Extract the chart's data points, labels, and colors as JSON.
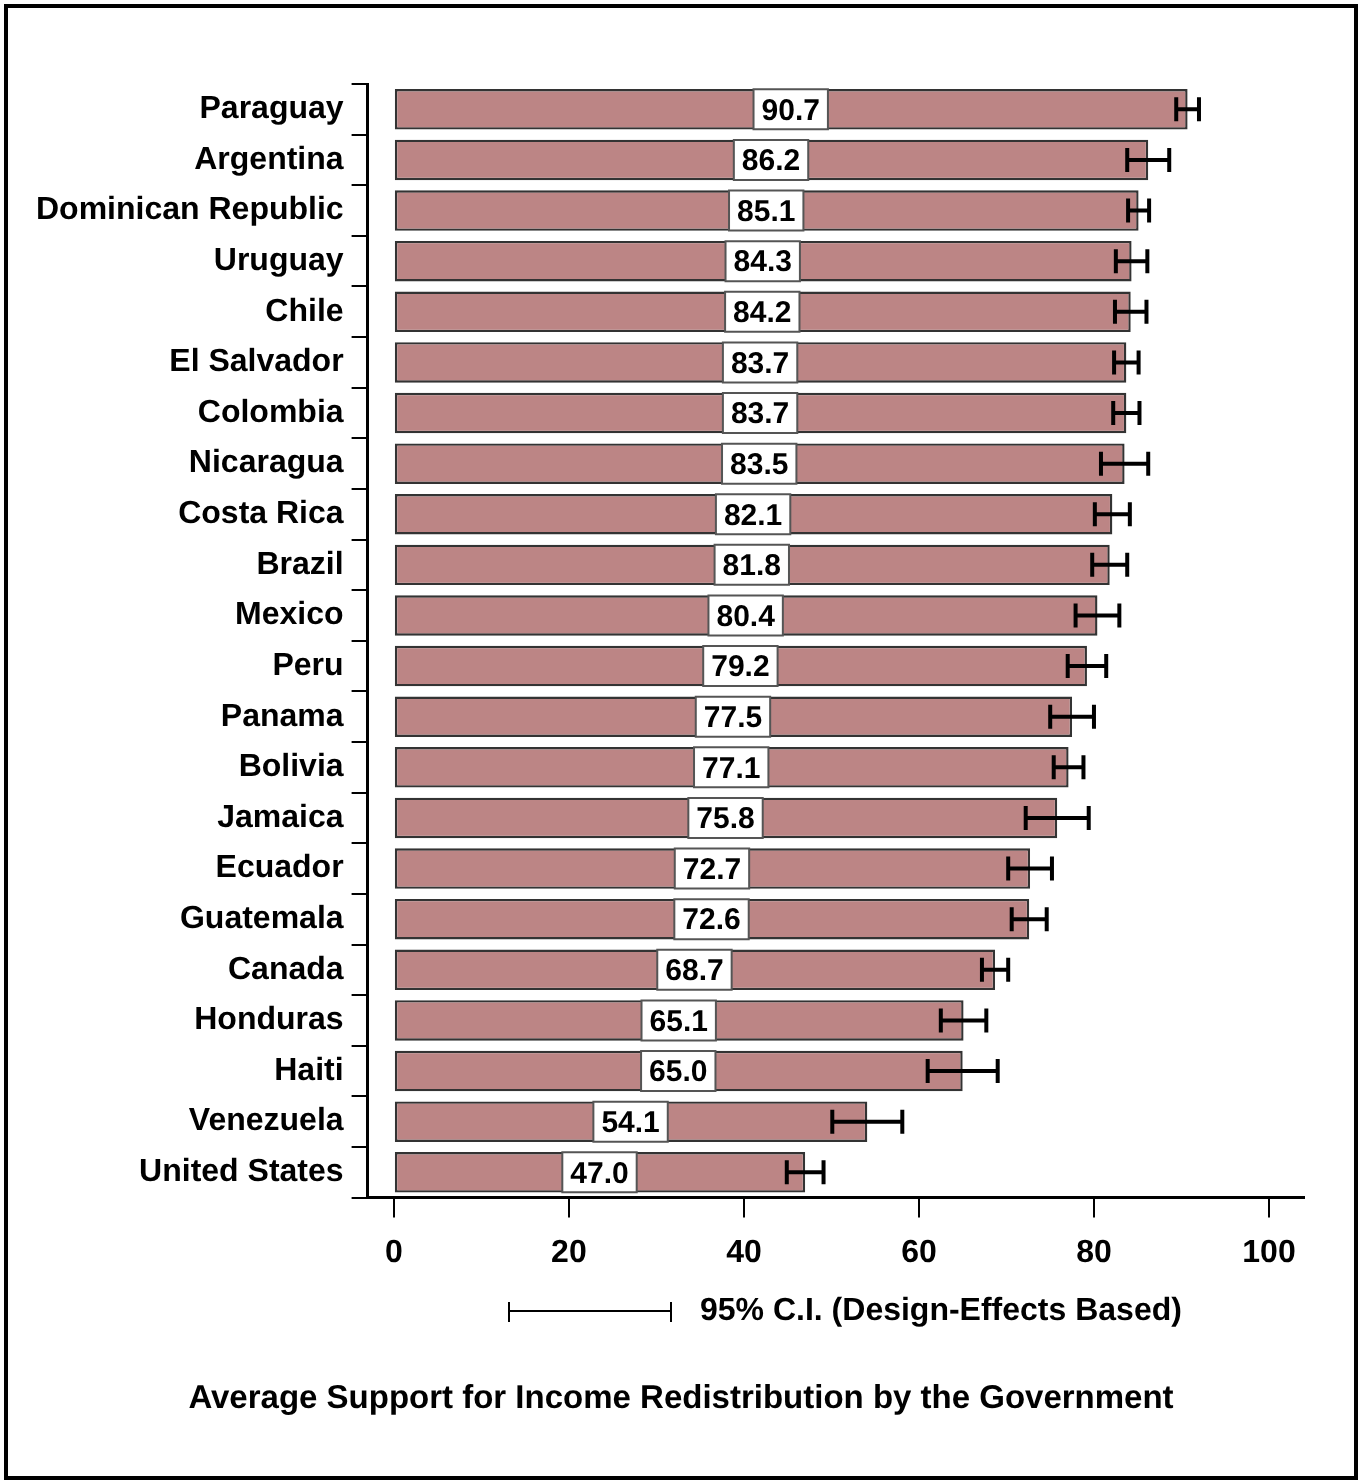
{
  "chart_data": {
    "type": "bar",
    "orientation": "horizontal",
    "title": "Average Support for Income Redistribution by the Government",
    "annotations": [
      "95% C.I. (Design-Effects Based)"
    ],
    "categories": [
      "Paraguay",
      "Argentina",
      "Dominican Republic",
      "Uruguay",
      "Chile",
      "El Salvador",
      "Colombia",
      "Nicaragua",
      "Costa Rica",
      "Brazil",
      "Mexico",
      "Peru",
      "Panama",
      "Bolivia",
      "Jamaica",
      "Ecuador",
      "Guatemala",
      "Canada",
      "Honduras",
      "Haiti",
      "Venezuela",
      "United States"
    ],
    "values": [
      90.7,
      86.2,
      85.1,
      84.3,
      84.2,
      83.7,
      83.7,
      83.5,
      82.1,
      81.8,
      80.4,
      79.2,
      77.5,
      77.1,
      75.8,
      72.7,
      72.6,
      68.7,
      65.1,
      65.0,
      54.1,
      47.0
    ],
    "errors": [
      1.3,
      2.4,
      1.2,
      1.8,
      1.8,
      1.4,
      1.5,
      2.7,
      2.0,
      2.0,
      2.5,
      2.2,
      2.5,
      1.7,
      3.6,
      2.5,
      2.0,
      1.5,
      2.6,
      4.0,
      4.0,
      2.1
    ],
    "value_labels": [
      "90.7",
      "86.2",
      "85.1",
      "84.3",
      "84.2",
      "83.7",
      "83.7",
      "83.5",
      "82.1",
      "81.8",
      "80.4",
      "79.2",
      "77.5",
      "77.1",
      "75.8",
      "72.7",
      "72.6",
      "68.7",
      "65.1",
      "65.0",
      "54.1",
      "47.0"
    ],
    "color": "#bc8585",
    "grid": false,
    "legend": false,
    "xlim": [
      -3,
      104
    ],
    "xticks": [
      0,
      20,
      40,
      60,
      80,
      100
    ]
  }
}
